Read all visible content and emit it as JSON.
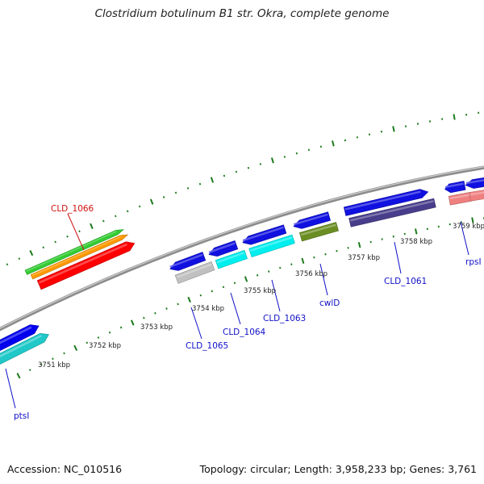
{
  "title": "Clostridium botulinum B1 str. Okra, complete genome",
  "footer": {
    "accession": "Accession: NC_010516",
    "stats": "Topology: circular; Length: 3,958,233 bp; Genes: 3,761"
  },
  "colors": {
    "backbone": "#8c8c8c",
    "ticks": "#1c7a1c",
    "label_blue": "#1010c8",
    "label_red": "#d01010"
  },
  "axis": {
    "tick_labels": [
      "3751 kbp",
      "3752 kbp",
      "3753 kbp",
      "3754 kbp",
      "3755 kbp",
      "3756 kbp",
      "3757 kbp",
      "3758 kbp",
      "3759 kbp"
    ]
  },
  "genes": [
    {
      "name": "ptsI",
      "label": "ptsI",
      "color": "#0000ee",
      "label_color": "#1010c8"
    },
    {
      "name": "ptsI-cds",
      "color": "#20c8c8"
    },
    {
      "name": "CLD_1066",
      "label": "CLD_1066",
      "color": "#ff0000",
      "label_color": "#d01010"
    },
    {
      "name": "CLD_1066-green",
      "color": "#33cc33"
    },
    {
      "name": "CLD_1066-orange",
      "color": "#ff9900"
    },
    {
      "name": "CLD_1065",
      "label": "CLD_1065",
      "color": "#1010e0",
      "label_color": "#1010c8"
    },
    {
      "name": "CLD_1065-cds",
      "color": "#c0c0c0"
    },
    {
      "name": "CLD_1064",
      "label": "CLD_1064",
      "color": "#1010e0",
      "label_color": "#1010c8"
    },
    {
      "name": "CLD_1064-cds",
      "color": "#00eeee"
    },
    {
      "name": "CLD_1063",
      "label": "CLD_1063",
      "color": "#1010e0",
      "label_color": "#1010c8"
    },
    {
      "name": "CLD_1063-cds",
      "color": "#00eeee"
    },
    {
      "name": "cwlD",
      "label": "cwlD",
      "color": "#1010e0",
      "label_color": "#1010c8"
    },
    {
      "name": "cwlD-cds",
      "color": "#6b8e23"
    },
    {
      "name": "CLD_1061",
      "label": "CLD_1061",
      "color": "#1010e0",
      "label_color": "#1010c8"
    },
    {
      "name": "CLD_1061-cds",
      "color": "#483d8b"
    },
    {
      "name": "rpsI",
      "label": "rpsI",
      "color": "#1010e0",
      "label_color": "#1010c8"
    },
    {
      "name": "rpsI-cds",
      "color": "#f08080"
    },
    {
      "name": "next-gene",
      "color": "#1010e0"
    },
    {
      "name": "next-gene-cds",
      "color": "#f08080"
    }
  ]
}
